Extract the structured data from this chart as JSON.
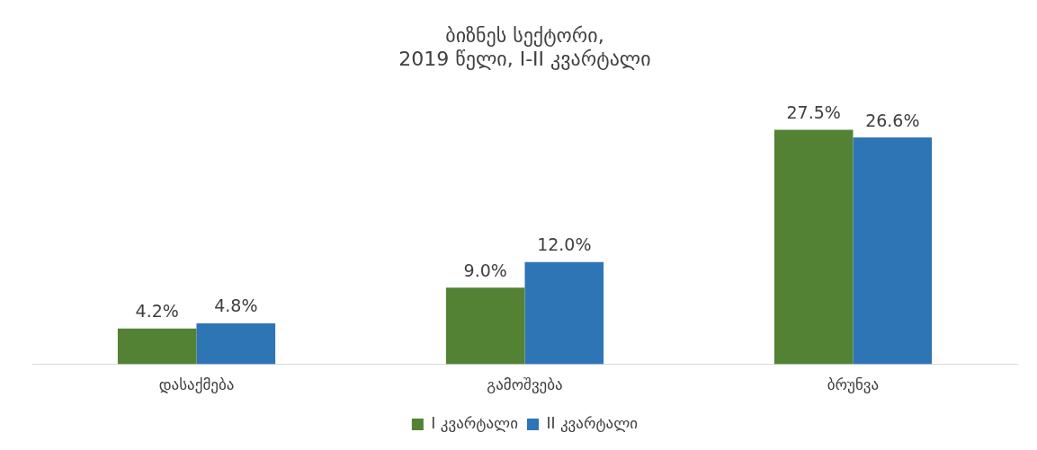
{
  "chart_data": {
    "type": "bar",
    "title": "ბიზნეს სექტორი,\n2019 წელი, I-II კვარტალი",
    "categories": [
      "დასაქმება",
      "გამოშვება",
      "ბრუნვა"
    ],
    "series": [
      {
        "name": "I კვარტალი",
        "color": "#548235",
        "values": [
          4.2,
          9.0,
          27.5
        ],
        "value_labels": [
          "4.2%",
          "9.0%",
          "27.5%"
        ]
      },
      {
        "name": "II კვარტალი",
        "color": "#2e75b6",
        "values": [
          4.8,
          12.0,
          26.6
        ],
        "value_labels": [
          "4.8%",
          "12.0%",
          "26.6%"
        ]
      }
    ],
    "grid": false,
    "legend": "bottom"
  }
}
